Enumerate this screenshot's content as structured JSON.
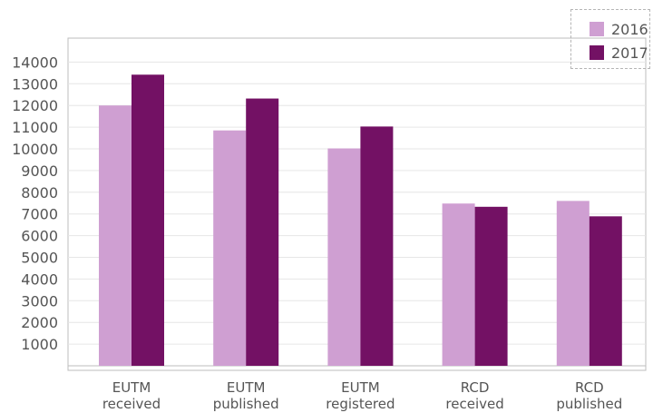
{
  "chart_data": {
    "type": "bar",
    "categories": [
      [
        "EUTM",
        "received"
      ],
      [
        "EUTM",
        "published"
      ],
      [
        "EUTM",
        "registered"
      ],
      [
        "RCD",
        "received"
      ],
      [
        "RCD",
        "published"
      ]
    ],
    "series": [
      {
        "name": "2016",
        "color": "#cf9fd2",
        "values": [
          12000,
          10850,
          10020,
          7480,
          7600
        ]
      },
      {
        "name": "2017",
        "color": "#731164",
        "values": [
          13420,
          12320,
          11030,
          7330,
          6890
        ]
      }
    ],
    "y_ticks": [
      "14000",
      "13000",
      "12000",
      "11000",
      "10000",
      "9000",
      "8000",
      "7000",
      "6000",
      "5000",
      "4000",
      "3000",
      "2000",
      "1000"
    ],
    "ylim": [
      0,
      15000
    ],
    "grid": true,
    "legend_position": "top-right"
  }
}
